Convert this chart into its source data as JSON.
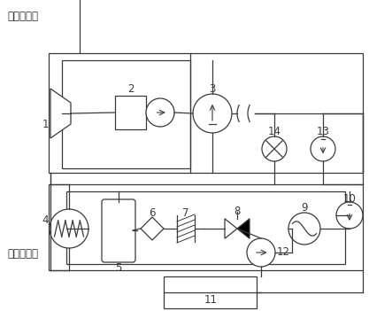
{
  "bg_color": "#ffffff",
  "lc": "#3a3a3a",
  "title_top": "高压管网侧",
  "title_bot": "低压管网侧",
  "figsize": [
    4.43,
    3.51
  ],
  "dpi": 100
}
